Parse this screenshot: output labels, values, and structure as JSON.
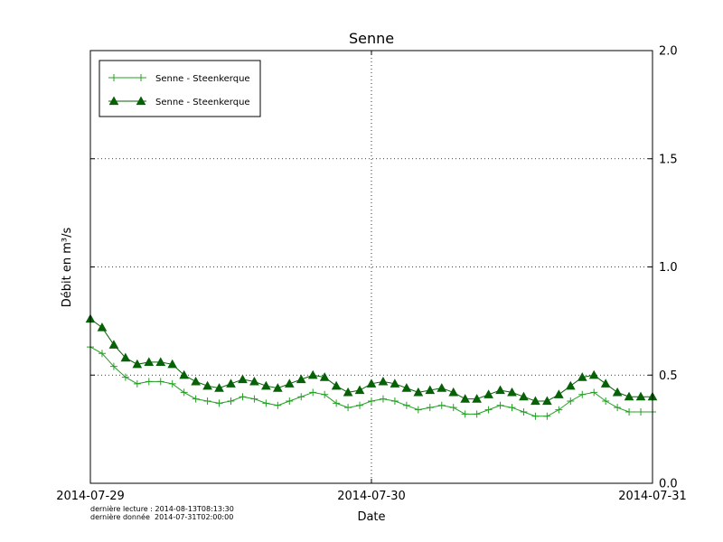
{
  "footer": {
    "line1": "dernière lecture : 2014-08-13T08:13:30",
    "line2": "dernière donnée  2014-07-31T02:00:00"
  },
  "chart_data": {
    "type": "line",
    "title": "Senne",
    "xlabel": "Date",
    "ylabel": "Débit en m³/s",
    "ylim": [
      0,
      2
    ],
    "xlim_hours": [
      0,
      48
    ],
    "grid": "dotted",
    "legend_position": "upper left",
    "xticks": [
      {
        "hour": 0,
        "label": "2014-07-29"
      },
      {
        "hour": 24,
        "label": "2014-07-30"
      },
      {
        "hour": 48,
        "label": "2014-07-31"
      }
    ],
    "yticks": [
      {
        "value": 0.0,
        "label": "0.0"
      },
      {
        "value": 0.5,
        "label": "0.5"
      },
      {
        "value": 1.0,
        "label": "1.0"
      },
      {
        "value": 1.5,
        "label": "1.5"
      },
      {
        "value": 2.0,
        "label": "2.0"
      }
    ],
    "series": [
      {
        "name": "Senne - Steenkerque",
        "marker": "plus",
        "color": "#22a022",
        "values": [
          0.63,
          0.6,
          0.54,
          0.49,
          0.46,
          0.47,
          0.47,
          0.46,
          0.42,
          0.39,
          0.38,
          0.37,
          0.38,
          0.4,
          0.39,
          0.37,
          0.36,
          0.38,
          0.4,
          0.42,
          0.41,
          0.37,
          0.35,
          0.36,
          0.38,
          0.39,
          0.38,
          0.36,
          0.34,
          0.35,
          0.36,
          0.35,
          0.32,
          0.32,
          0.34,
          0.36,
          0.35,
          0.33,
          0.31,
          0.31,
          0.34,
          0.38,
          0.41,
          0.42,
          0.38,
          0.35,
          0.33,
          0.33,
          0.33
        ]
      },
      {
        "name": "Senne - Steenkerque",
        "marker": "triangle",
        "color": "#076107",
        "values": [
          0.76,
          0.72,
          0.64,
          0.58,
          0.55,
          0.56,
          0.56,
          0.55,
          0.5,
          0.47,
          0.45,
          0.44,
          0.46,
          0.48,
          0.47,
          0.45,
          0.44,
          0.46,
          0.48,
          0.5,
          0.49,
          0.45,
          0.42,
          0.43,
          0.46,
          0.47,
          0.46,
          0.44,
          0.42,
          0.43,
          0.44,
          0.42,
          0.39,
          0.39,
          0.41,
          0.43,
          0.42,
          0.4,
          0.38,
          0.38,
          0.41,
          0.45,
          0.49,
          0.5,
          0.46,
          0.42,
          0.4,
          0.4,
          0.4
        ]
      }
    ]
  }
}
